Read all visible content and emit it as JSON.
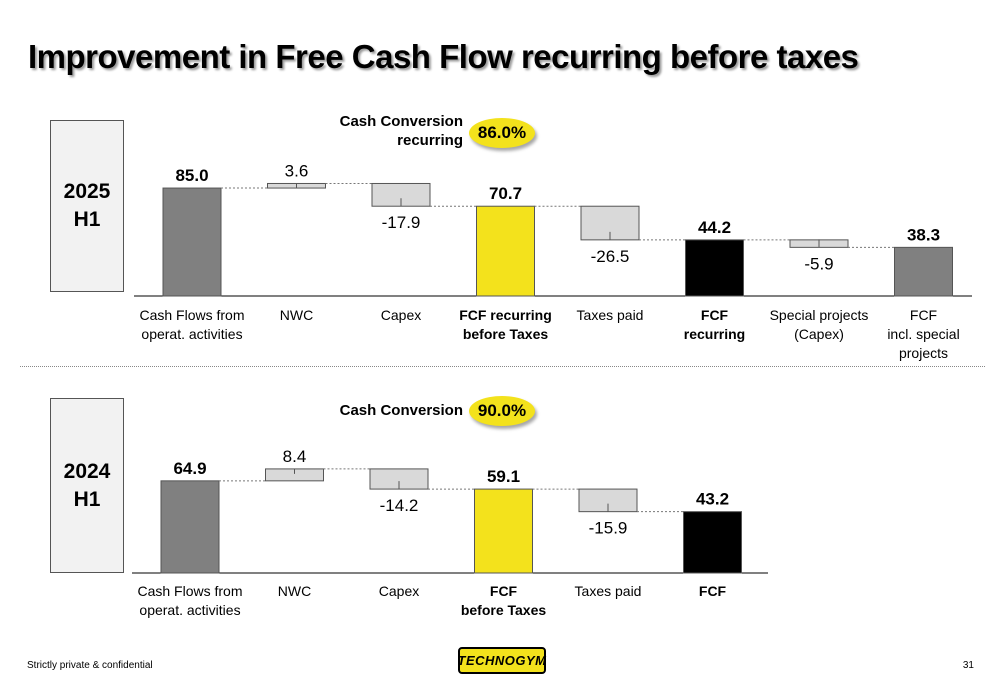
{
  "title": "Improvement in Free Cash Flow recurring before taxes",
  "footer": {
    "left": "Strictly private & confidential",
    "page_number": "31",
    "logo_text": "TECHNOGYM"
  },
  "panels": [
    {
      "period_line1": "2025",
      "period_line2": "H1",
      "cash_conversion_label_line1": "Cash Conversion",
      "cash_conversion_label_line2": "recurring",
      "cash_conversion_value": "86.0%"
    },
    {
      "period_line1": "2024",
      "period_line2": "H1",
      "cash_conversion_label_line1": "Cash Conversion",
      "cash_conversion_label_line2": "",
      "cash_conversion_value": "90.0%"
    }
  ],
  "chart_data": [
    {
      "type": "bar",
      "subtype": "waterfall",
      "title": "",
      "xlabel": "",
      "ylabel": "",
      "grid": false,
      "categories": [
        [
          "Cash Flows from",
          "operat. activities"
        ],
        [
          "NWC"
        ],
        [
          "Capex"
        ],
        [
          "FCF recurring",
          "before Taxes"
        ],
        [
          "Taxes paid"
        ],
        [
          "FCF",
          "recurring"
        ],
        [
          "Special projects",
          "(Capex)"
        ],
        [
          "FCF",
          "incl. special",
          "projects"
        ]
      ],
      "values": [
        85.0,
        3.6,
        -17.9,
        70.7,
        -26.5,
        44.2,
        -5.9,
        38.3
      ],
      "labels": [
        "85.0",
        "3.6",
        "-17.9",
        "70.7",
        "-26.5",
        "44.2",
        "-5.9",
        "38.3"
      ],
      "kinds": [
        "total",
        "delta",
        "delta",
        "total",
        "delta",
        "total",
        "delta",
        "total"
      ],
      "colors": [
        "#808080",
        "#d9d9d9",
        "#d9d9d9",
        "#f3e21c",
        "#d9d9d9",
        "#000000",
        "#d9d9d9",
        "#808080"
      ],
      "bold_categories": [
        false,
        false,
        false,
        true,
        false,
        true,
        false,
        false
      ]
    },
    {
      "type": "bar",
      "subtype": "waterfall",
      "title": "",
      "xlabel": "",
      "ylabel": "",
      "grid": false,
      "categories": [
        [
          "Cash Flows from",
          "operat. activities"
        ],
        [
          "NWC"
        ],
        [
          "Capex"
        ],
        [
          "FCF",
          "before Taxes"
        ],
        [
          "Taxes paid"
        ],
        [
          "FCF"
        ]
      ],
      "values": [
        64.9,
        8.4,
        -14.2,
        59.1,
        -15.9,
        43.2
      ],
      "labels": [
        "64.9",
        "8.4",
        "-14.2",
        "59.1",
        "-15.9",
        "43.2"
      ],
      "kinds": [
        "total",
        "delta",
        "delta",
        "total",
        "delta",
        "total"
      ],
      "colors": [
        "#808080",
        "#d9d9d9",
        "#d9d9d9",
        "#f3e21c",
        "#d9d9d9",
        "#000000"
      ],
      "bold_categories": [
        false,
        false,
        false,
        true,
        false,
        true
      ]
    }
  ]
}
